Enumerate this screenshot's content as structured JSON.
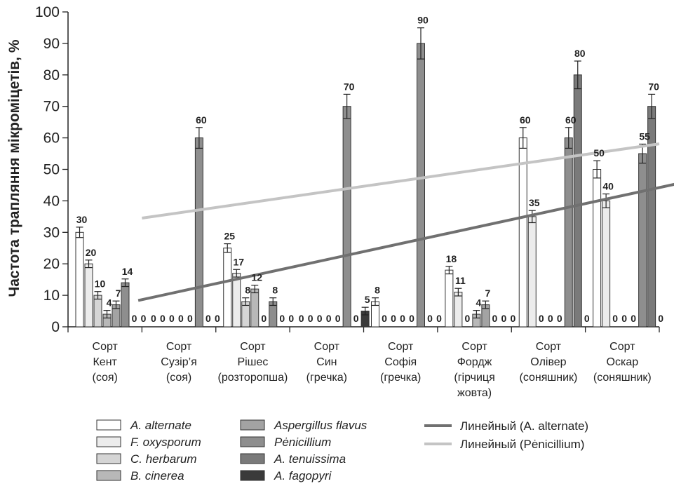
{
  "chart_data": {
    "type": "bar",
    "ylabel": "Частота трапляння мікроміцетів, %",
    "ylim": [
      0,
      100
    ],
    "yticks": [
      "0",
      "10",
      "20",
      "30",
      "40",
      "50",
      "60",
      "70",
      "80",
      "90",
      "100"
    ],
    "grid": false,
    "categories": [
      [
        "Сорт",
        "Кент",
        "(соя)"
      ],
      [
        "Сорт",
        "Сузір’я",
        "(соя)"
      ],
      [
        "Сорт",
        "Рішес",
        "(розторопша)"
      ],
      [
        "Сорт",
        "Син",
        "(гречка)"
      ],
      [
        "Сорт",
        "Софія",
        "(гречка)"
      ],
      [
        "Сорт",
        "Фордж",
        "(гірчиця",
        "жовта)"
      ],
      [
        "Сорт",
        "Олівер",
        "(соняшник)"
      ],
      [
        "Сорт",
        "Оскар",
        "(соняшник)"
      ]
    ],
    "series": [
      {
        "name": "A. alternate",
        "color": "#ffffff",
        "values": [
          30,
          0,
          25,
          0,
          8,
          18,
          60,
          50
        ]
      },
      {
        "name": "F. oxysporum",
        "color": "#ececec",
        "values": [
          20,
          0,
          17,
          0,
          0,
          11,
          35,
          40
        ]
      },
      {
        "name": "C. herbarum",
        "color": "#d5d5d5",
        "values": [
          10,
          0,
          8,
          0,
          0,
          0,
          0,
          0
        ]
      },
      {
        "name": "B. cinerea",
        "color": "#b8b8b8",
        "values": [
          4,
          0,
          12,
          0,
          0,
          4,
          0,
          0
        ]
      },
      {
        "name": "Aspergillus flavus",
        "color": "#a3a3a3",
        "values": [
          7,
          0,
          0,
          0,
          0,
          7,
          0,
          0
        ]
      },
      {
        "name": "Pėnicillium",
        "color": "#8e8e8e",
        "values": [
          14,
          60,
          8,
          70,
          90,
          0,
          60,
          55
        ]
      },
      {
        "name": "A. tenuissima",
        "color": "#7a7a7a",
        "values": [
          0,
          0,
          0,
          0,
          0,
          0,
          80,
          70
        ]
      },
      {
        "name": "A. fagopyri",
        "color": "#3a3a3a",
        "values": [
          0,
          0,
          0,
          5,
          0,
          0,
          0,
          0
        ]
      }
    ],
    "trendlines": [
      {
        "name": "Линейный (A. alternate)",
        "color": "#707070"
      },
      {
        "name": "Линейный (Pėnicillium)",
        "color": "#c4c4c4"
      }
    ],
    "legend_position": "bottom"
  }
}
